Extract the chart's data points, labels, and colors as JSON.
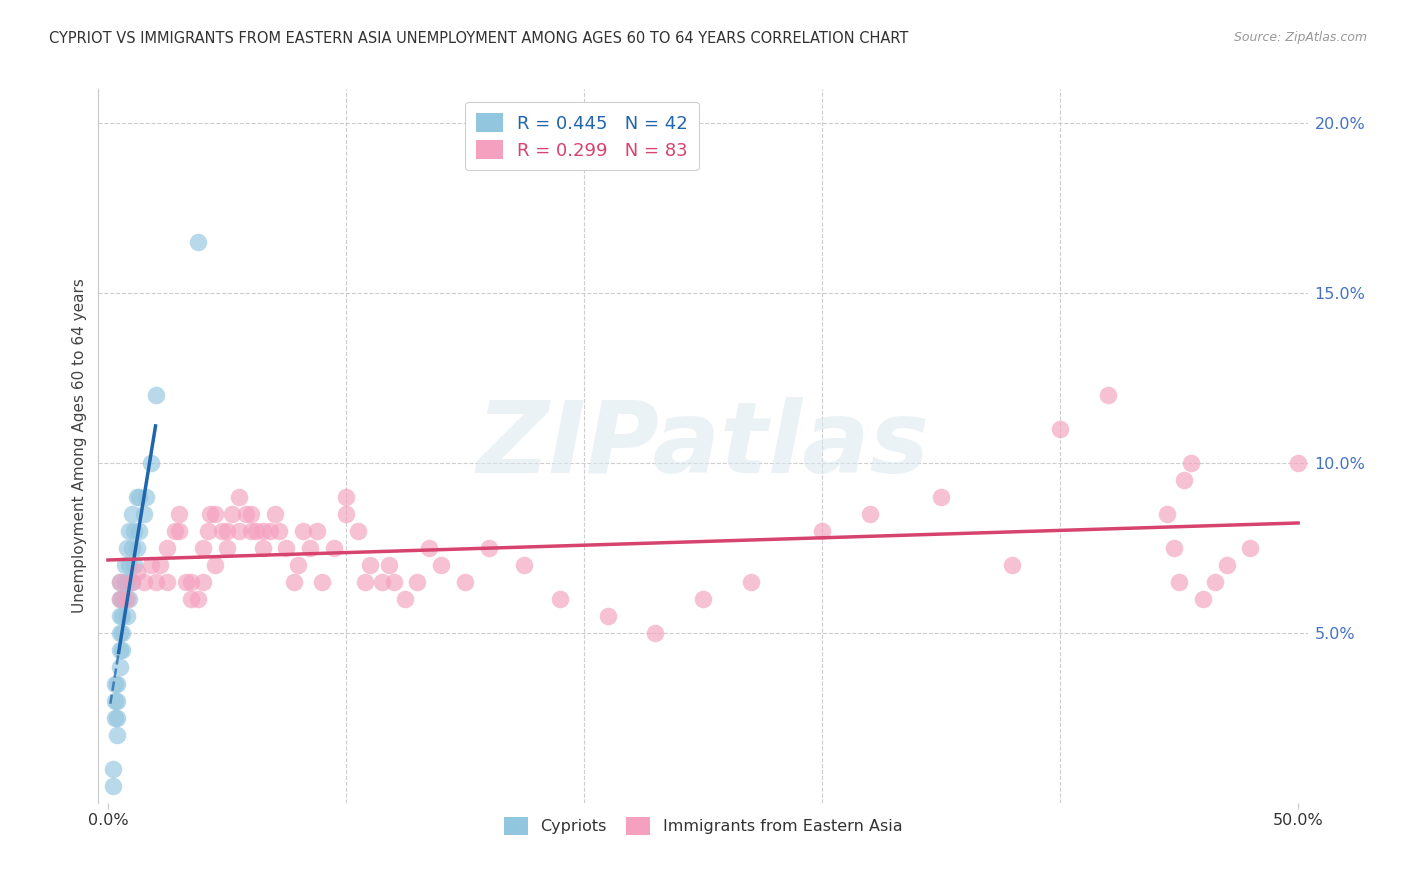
{
  "title": "CYPRIOT VS IMMIGRANTS FROM EASTERN ASIA UNEMPLOYMENT AMONG AGES 60 TO 64 YEARS CORRELATION CHART",
  "source": "Source: ZipAtlas.com",
  "ylabel": "Unemployment Among Ages 60 to 64 years",
  "xlim": [
    0.0,
    0.5
  ],
  "ylim": [
    0.0,
    0.21
  ],
  "xtick_left_label": "0.0%",
  "xtick_right_label": "50.0%",
  "yticks_right": [
    0.05,
    0.1,
    0.15,
    0.2
  ],
  "ytick_labels_right": [
    "5.0%",
    "10.0%",
    "15.0%",
    "20.0%"
  ],
  "legend_blue_R": "0.445",
  "legend_blue_N": "42",
  "legend_pink_R": "0.299",
  "legend_pink_N": "83",
  "color_blue": "#92c5de",
  "color_blue_line": "#2166ac",
  "color_pink": "#f4a0be",
  "color_pink_line": "#d6436e",
  "blue_scatter_x": [
    0.002,
    0.002,
    0.003,
    0.003,
    0.003,
    0.004,
    0.004,
    0.004,
    0.004,
    0.005,
    0.005,
    0.005,
    0.005,
    0.005,
    0.005,
    0.006,
    0.006,
    0.006,
    0.006,
    0.007,
    0.007,
    0.007,
    0.008,
    0.008,
    0.008,
    0.009,
    0.009,
    0.009,
    0.01,
    0.01,
    0.01,
    0.011,
    0.011,
    0.012,
    0.012,
    0.013,
    0.013,
    0.015,
    0.016,
    0.018,
    0.02,
    0.038
  ],
  "blue_scatter_y": [
    0.005,
    0.01,
    0.025,
    0.03,
    0.035,
    0.02,
    0.025,
    0.03,
    0.035,
    0.04,
    0.045,
    0.05,
    0.055,
    0.06,
    0.065,
    0.045,
    0.05,
    0.055,
    0.06,
    0.06,
    0.065,
    0.07,
    0.055,
    0.065,
    0.075,
    0.06,
    0.07,
    0.08,
    0.065,
    0.075,
    0.085,
    0.07,
    0.08,
    0.075,
    0.09,
    0.08,
    0.09,
    0.085,
    0.09,
    0.1,
    0.12,
    0.165
  ],
  "pink_scatter_x": [
    0.005,
    0.005,
    0.008,
    0.01,
    0.012,
    0.015,
    0.018,
    0.02,
    0.022,
    0.025,
    0.025,
    0.028,
    0.03,
    0.03,
    0.033,
    0.035,
    0.035,
    0.038,
    0.04,
    0.04,
    0.042,
    0.043,
    0.045,
    0.045,
    0.048,
    0.05,
    0.05,
    0.052,
    0.055,
    0.055,
    0.058,
    0.06,
    0.06,
    0.062,
    0.065,
    0.065,
    0.068,
    0.07,
    0.072,
    0.075,
    0.078,
    0.08,
    0.082,
    0.085,
    0.088,
    0.09,
    0.095,
    0.1,
    0.1,
    0.105,
    0.108,
    0.11,
    0.115,
    0.118,
    0.12,
    0.125,
    0.13,
    0.135,
    0.14,
    0.15,
    0.16,
    0.175,
    0.19,
    0.21,
    0.23,
    0.25,
    0.27,
    0.3,
    0.32,
    0.35,
    0.38,
    0.4,
    0.42,
    0.445,
    0.448,
    0.45,
    0.452,
    0.455,
    0.46,
    0.465,
    0.47,
    0.48,
    0.5
  ],
  "pink_scatter_y": [
    0.06,
    0.065,
    0.06,
    0.065,
    0.068,
    0.065,
    0.07,
    0.065,
    0.07,
    0.065,
    0.075,
    0.08,
    0.085,
    0.08,
    0.065,
    0.06,
    0.065,
    0.06,
    0.065,
    0.075,
    0.08,
    0.085,
    0.085,
    0.07,
    0.08,
    0.075,
    0.08,
    0.085,
    0.08,
    0.09,
    0.085,
    0.08,
    0.085,
    0.08,
    0.075,
    0.08,
    0.08,
    0.085,
    0.08,
    0.075,
    0.065,
    0.07,
    0.08,
    0.075,
    0.08,
    0.065,
    0.075,
    0.085,
    0.09,
    0.08,
    0.065,
    0.07,
    0.065,
    0.07,
    0.065,
    0.06,
    0.065,
    0.075,
    0.07,
    0.065,
    0.075,
    0.07,
    0.06,
    0.055,
    0.05,
    0.06,
    0.065,
    0.08,
    0.085,
    0.09,
    0.07,
    0.11,
    0.12,
    0.085,
    0.075,
    0.065,
    0.095,
    0.1,
    0.06,
    0.065,
    0.07,
    0.075,
    0.1
  ],
  "watermark_text": "ZIPatlas",
  "background_color": "#ffffff",
  "grid_color": "#c8c8c8",
  "ytick_color": "#4472c4",
  "xtick_color": "#333333"
}
